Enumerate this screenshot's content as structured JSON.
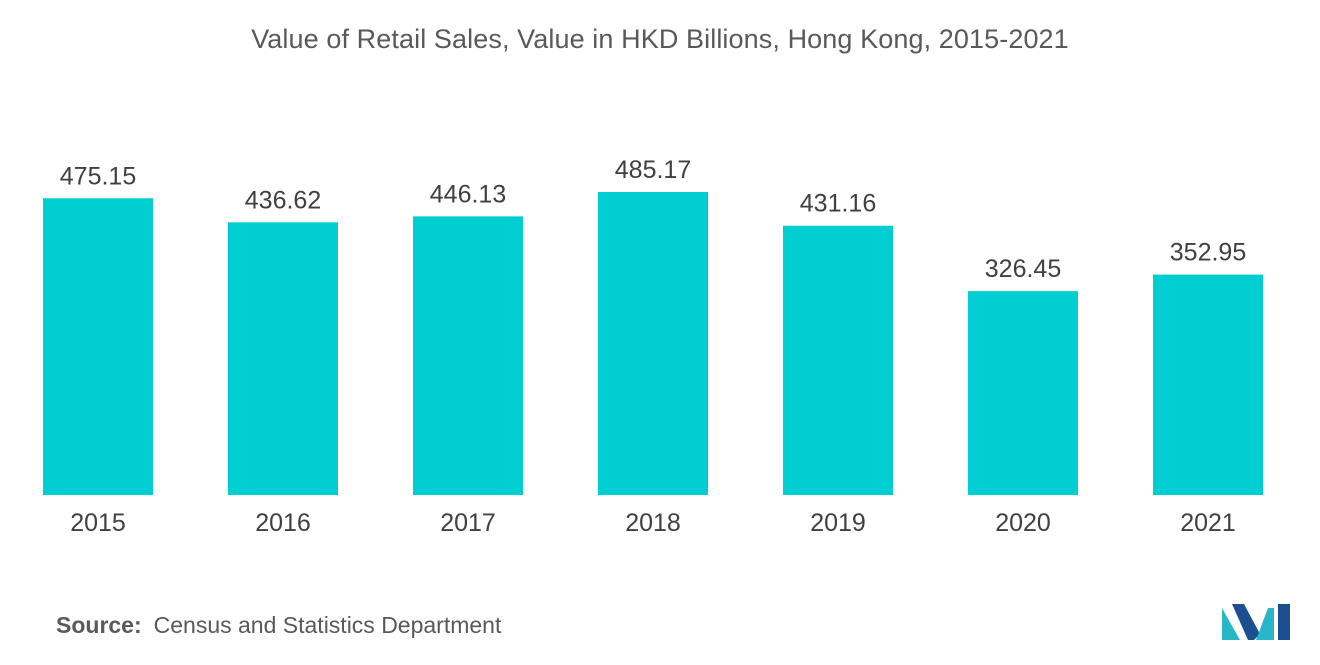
{
  "chart_data": {
    "type": "bar",
    "title": "Value of Retail Sales, Value in HKD Billions, Hong Kong, 2015-2021",
    "categories": [
      "2015",
      "2016",
      "2017",
      "2018",
      "2019",
      "2020",
      "2021"
    ],
    "values": [
      475.15,
      436.62,
      446.13,
      485.17,
      431.16,
      326.45,
      352.95
    ],
    "value_labels": [
      "475.15",
      "436.62",
      "446.13",
      "485.17",
      "431.16",
      "326.45",
      "352.95"
    ],
    "xlabel": "",
    "ylabel": "",
    "ylim": [
      0,
      485.17
    ],
    "grid": false,
    "legend": "none",
    "bar_color": "#00CED1"
  },
  "footer": {
    "source_label": "Source:",
    "source_text": "Census and Statistics Department"
  },
  "logo": {
    "icon": "mordor-intelligence-logo-icon",
    "colors": [
      "#1B4F8F",
      "#29B6C8"
    ]
  }
}
